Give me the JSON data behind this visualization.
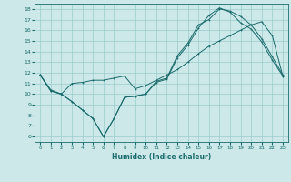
{
  "xlabel": "Humidex (Indice chaleur)",
  "bg_color": "#cce8e8",
  "grid_color": "#99cccc",
  "line_color": "#1a6b6b",
  "xlim": [
    -0.5,
    23.5
  ],
  "ylim": [
    5.5,
    18.5
  ],
  "xticks": [
    0,
    1,
    2,
    3,
    4,
    5,
    6,
    7,
    8,
    9,
    10,
    11,
    12,
    13,
    14,
    15,
    16,
    17,
    18,
    19,
    20,
    21,
    22,
    23
  ],
  "yticks": [
    6,
    7,
    8,
    9,
    10,
    11,
    12,
    13,
    14,
    15,
    16,
    17,
    18
  ],
  "line1_x": [
    0,
    1,
    2,
    3,
    4,
    5,
    6,
    7,
    8,
    9,
    10,
    11,
    12,
    13,
    14,
    15,
    16,
    17,
    18,
    19,
    20,
    21,
    22,
    23
  ],
  "line1_y": [
    11.8,
    10.3,
    10.0,
    9.3,
    8.5,
    7.7,
    6.0,
    7.7,
    9.7,
    9.8,
    10.0,
    11.2,
    11.5,
    13.6,
    14.8,
    16.5,
    17.0,
    18.0,
    17.8,
    17.3,
    16.5,
    15.2,
    13.5,
    11.8
  ],
  "line2_x": [
    0,
    1,
    2,
    3,
    4,
    5,
    6,
    7,
    8,
    9,
    10,
    11,
    12,
    13,
    14,
    15,
    16,
    17,
    18,
    19,
    20,
    21,
    22,
    23
  ],
  "line2_y": [
    11.8,
    10.4,
    10.0,
    11.0,
    11.1,
    11.3,
    11.3,
    11.5,
    11.7,
    10.5,
    10.8,
    11.3,
    11.8,
    12.3,
    13.0,
    13.8,
    14.5,
    15.0,
    15.5,
    16.0,
    16.5,
    16.8,
    15.5,
    11.7
  ],
  "line3_x": [
    0,
    1,
    2,
    3,
    4,
    5,
    6,
    7,
    8,
    9,
    10,
    11,
    12,
    13,
    14,
    15,
    16,
    17,
    18,
    19,
    20,
    21,
    22,
    23
  ],
  "line3_y": [
    11.8,
    10.3,
    10.0,
    9.3,
    8.5,
    7.7,
    6.0,
    7.7,
    9.7,
    9.8,
    10.0,
    11.1,
    11.4,
    13.4,
    14.6,
    16.2,
    17.4,
    18.1,
    17.7,
    16.7,
    16.1,
    14.9,
    13.2,
    11.7
  ]
}
